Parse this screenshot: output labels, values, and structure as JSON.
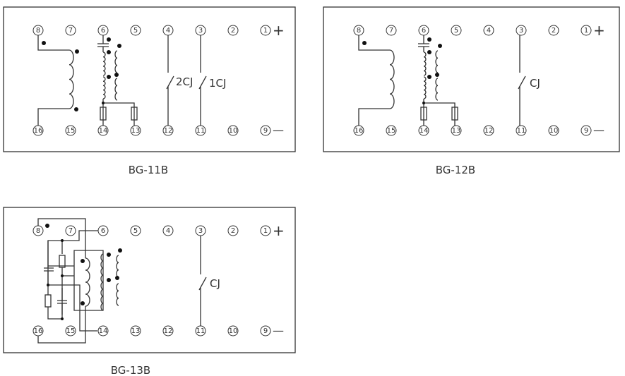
{
  "diagrams": [
    {
      "id": "BG-11B",
      "caption": "BG-11B",
      "top_terminals": [
        "8",
        "7",
        "6",
        "5",
        "4",
        "3",
        "2",
        "1"
      ],
      "bottom_terminals": [
        "16",
        "15",
        "14",
        "13",
        "12",
        "11",
        "10",
        "9"
      ],
      "plus": "+",
      "minus": "—",
      "contacts": [
        "2CJ",
        "1CJ"
      ]
    },
    {
      "id": "BG-12B",
      "caption": "BG-12B",
      "top_terminals": [
        "8",
        "7",
        "6",
        "5",
        "4",
        "3",
        "2",
        "1"
      ],
      "bottom_terminals": [
        "16",
        "15",
        "14",
        "13",
        "12",
        "11",
        "10",
        "9"
      ],
      "plus": "+",
      "minus": "—",
      "contacts": [
        "CJ"
      ]
    },
    {
      "id": "BG-13B",
      "caption": "BG-13B",
      "top_terminals": [
        "8",
        "7",
        "6",
        "5",
        "4",
        "3",
        "2",
        "1"
      ],
      "bottom_terminals": [
        "16",
        "15",
        "14",
        "13",
        "12",
        "11",
        "10",
        "9"
      ],
      "plus": "+",
      "minus": "—",
      "contacts": [
        "CJ"
      ]
    }
  ]
}
